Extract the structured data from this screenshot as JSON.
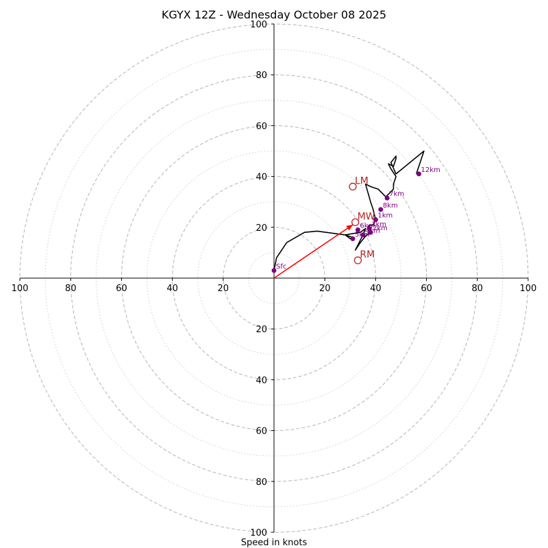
{
  "chart_data": {
    "type": "hodograph",
    "title": "KGYX 12Z - Wednesday October 08 2025",
    "xlabel": "Speed in knots",
    "max_speed": 100,
    "tick_labels": [
      "100",
      "80",
      "60",
      "40",
      "20",
      "20",
      "40",
      "60",
      "80",
      "100"
    ],
    "vertical_tick_labels": [
      "100",
      "80",
      "60",
      "40",
      "20",
      "20",
      "40",
      "60",
      "80",
      "100"
    ],
    "ring_major_values": [
      20,
      40,
      60,
      80,
      100
    ],
    "ring_minor_values": [
      10,
      30,
      50,
      70,
      90
    ],
    "hodograph_trace": [
      [
        0,
        3
      ],
      [
        1,
        8
      ],
      [
        5,
        14
      ],
      [
        12,
        18
      ],
      [
        17,
        18.5
      ],
      [
        28,
        17
      ],
      [
        31,
        16
      ],
      [
        30,
        15.5
      ],
      [
        28,
        17
      ],
      [
        34,
        18
      ],
      [
        36,
        19.5
      ],
      [
        35,
        17
      ],
      [
        32,
        11
      ],
      [
        34,
        14
      ],
      [
        36,
        16.5
      ],
      [
        38,
        18
      ],
      [
        37,
        20.5
      ],
      [
        39,
        21
      ],
      [
        40,
        23
      ],
      [
        39,
        27
      ],
      [
        38,
        30
      ],
      [
        36,
        37
      ],
      [
        38,
        36
      ],
      [
        41,
        35
      ],
      [
        44,
        32
      ],
      [
        46,
        34
      ],
      [
        47,
        35
      ],
      [
        47,
        37
      ],
      [
        48,
        40
      ],
      [
        46,
        43
      ],
      [
        45,
        45
      ],
      [
        47,
        44
      ],
      [
        48,
        47
      ],
      [
        48,
        48
      ],
      [
        46,
        45.5
      ],
      [
        48,
        41
      ],
      [
        59,
        50
      ],
      [
        56,
        41
      ]
    ],
    "height_markers": [
      {
        "label": "Sfc",
        "u": 0,
        "v": 3
      },
      {
        "label": "5km",
        "u": 31,
        "v": 15.5
      },
      {
        "label": "6km",
        "u": 33,
        "v": 19
      },
      {
        "label": "4km",
        "u": 35,
        "v": 17
      },
      {
        "label": "2km",
        "u": 38,
        "v": 18
      },
      {
        "label": "3km",
        "u": 37.5,
        "v": 19.5
      },
      {
        "label": "1km",
        "u": 40,
        "v": 23
      },
      {
        "label": "8km",
        "u": 42,
        "v": 27
      },
      {
        "label": "7km",
        "u": 44.5,
        "v": 31.5
      },
      {
        "label": "12km",
        "u": 57,
        "v": 41
      }
    ],
    "storm_motions": [
      {
        "label": "LM",
        "u": 31,
        "v": 36
      },
      {
        "label": "MW",
        "u": 32,
        "v": 22
      },
      {
        "label": "RM",
        "u": 33,
        "v": 7
      }
    ],
    "shear_vector": {
      "from": [
        0,
        0
      ],
      "to": [
        31,
        21
      ]
    },
    "colors": {
      "trace": "#000000",
      "markers": "#800080",
      "storm_motion": "#b22222",
      "shear_vector": "#ff0000",
      "rings": "#b3b3b3"
    }
  }
}
